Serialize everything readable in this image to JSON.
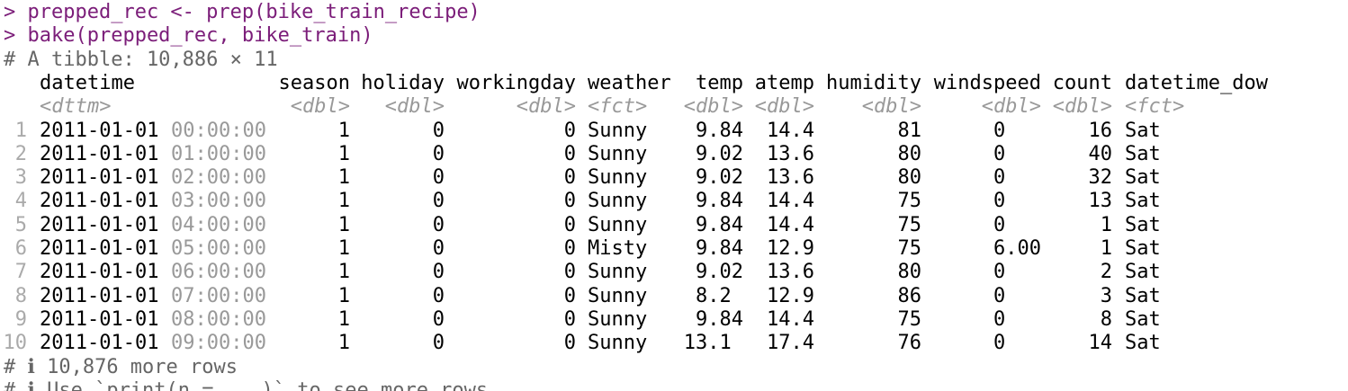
{
  "console": {
    "commands": [
      "> prepped_rec <- prep(bike_train_recipe)",
      "> bake(prepped_rec, bike_train)"
    ],
    "tibble_header": "# A tibble: 10,886 × 11",
    "columns": [
      {
        "name": "datetime",
        "type": "<dttm>"
      },
      {
        "name": "season",
        "type": "<dbl>"
      },
      {
        "name": "holiday",
        "type": "<dbl>"
      },
      {
        "name": "workingday",
        "type": "<dbl>"
      },
      {
        "name": "weather",
        "type": "<fct>"
      },
      {
        "name": "temp",
        "type": "<dbl>"
      },
      {
        "name": "atemp",
        "type": "<dbl>"
      },
      {
        "name": "humidity",
        "type": "<dbl>"
      },
      {
        "name": "windspeed",
        "type": "<dbl>"
      },
      {
        "name": "count",
        "type": "<dbl>"
      },
      {
        "name": "datetime_dow",
        "type": "<fct>"
      }
    ],
    "rows": [
      {
        "index": 1,
        "date": "2011-01-01",
        "time": "00:00:00",
        "cells": [
          "1",
          "0",
          "0",
          "Sunny",
          "9.84",
          "14.4",
          "81",
          "0",
          "16",
          "Sat"
        ]
      },
      {
        "index": 2,
        "date": "2011-01-01",
        "time": "01:00:00",
        "cells": [
          "1",
          "0",
          "0",
          "Sunny",
          "9.02",
          "13.6",
          "80",
          "0",
          "40",
          "Sat"
        ]
      },
      {
        "index": 3,
        "date": "2011-01-01",
        "time": "02:00:00",
        "cells": [
          "1",
          "0",
          "0",
          "Sunny",
          "9.02",
          "13.6",
          "80",
          "0",
          "32",
          "Sat"
        ]
      },
      {
        "index": 4,
        "date": "2011-01-01",
        "time": "03:00:00",
        "cells": [
          "1",
          "0",
          "0",
          "Sunny",
          "9.84",
          "14.4",
          "75",
          "0",
          "13",
          "Sat"
        ]
      },
      {
        "index": 5,
        "date": "2011-01-01",
        "time": "04:00:00",
        "cells": [
          "1",
          "0",
          "0",
          "Sunny",
          "9.84",
          "14.4",
          "75",
          "0",
          "1",
          "Sat"
        ]
      },
      {
        "index": 6,
        "date": "2011-01-01",
        "time": "05:00:00",
        "cells": [
          "1",
          "0",
          "0",
          "Misty",
          "9.84",
          "12.9",
          "75",
          "6.00",
          "1",
          "Sat"
        ]
      },
      {
        "index": 7,
        "date": "2011-01-01",
        "time": "06:00:00",
        "cells": [
          "1",
          "0",
          "0",
          "Sunny",
          "9.02",
          "13.6",
          "80",
          "0",
          "2",
          "Sat"
        ]
      },
      {
        "index": 8,
        "date": "2011-01-01",
        "time": "07:00:00",
        "cells": [
          "1",
          "0",
          "0",
          "Sunny",
          "8.2 ",
          "12.9",
          "86",
          "0",
          "3",
          "Sat"
        ]
      },
      {
        "index": 9,
        "date": "2011-01-01",
        "time": "08:00:00",
        "cells": [
          "1",
          "0",
          "0",
          "Sunny",
          "9.84",
          "14.4",
          "75",
          "0",
          "8",
          "Sat"
        ]
      },
      {
        "index": 10,
        "date": "2011-01-01",
        "time": "09:00:00",
        "cells": [
          "1",
          "0",
          "0",
          "Sunny",
          "13.1 ",
          "17.4",
          "76",
          "0",
          "14",
          "Sat"
        ]
      }
    ],
    "footer": [
      "# ℹ 10,876 more rows",
      "# ℹ Use `print(n = ...)` to see more rows"
    ]
  }
}
